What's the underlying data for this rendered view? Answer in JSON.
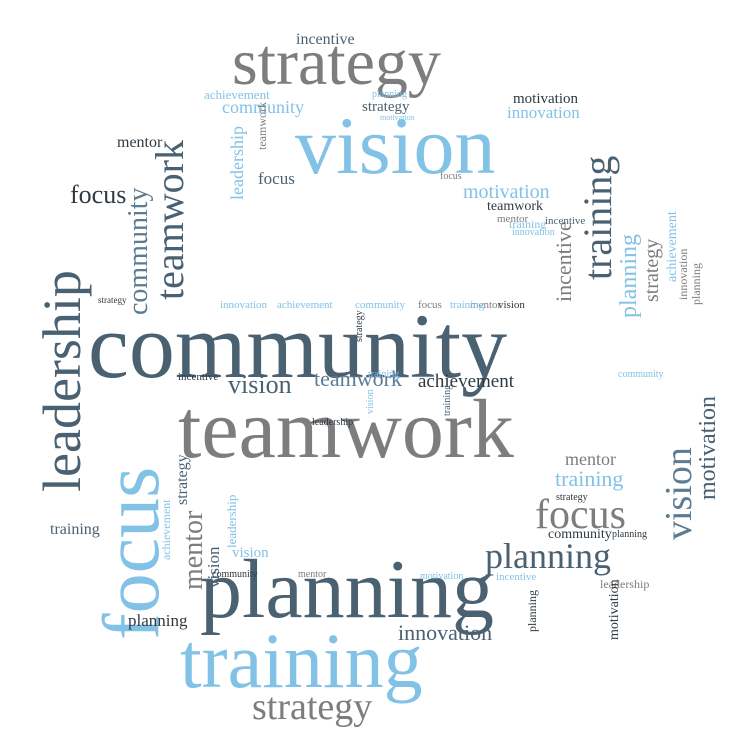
{
  "words": [
    {
      "text": "community"
    },
    {
      "text": "teamwork"
    },
    {
      "text": "planning"
    },
    {
      "text": "training"
    },
    {
      "text": "vision"
    },
    {
      "text": "strategy"
    },
    {
      "text": "focus"
    },
    {
      "text": "leadership"
    },
    {
      "text": "teamwork"
    },
    {
      "text": "community"
    },
    {
      "text": "strategy"
    },
    {
      "text": "incentive"
    },
    {
      "text": "achievement"
    },
    {
      "text": "community"
    },
    {
      "text": "strategy"
    },
    {
      "text": "motivation"
    },
    {
      "text": "innovation"
    },
    {
      "text": "planning"
    },
    {
      "text": "mentor"
    },
    {
      "text": "focus"
    },
    {
      "text": "leadership"
    },
    {
      "text": "focus"
    },
    {
      "text": "motivation"
    },
    {
      "text": "teamwork"
    },
    {
      "text": "mentor"
    },
    {
      "text": "training"
    },
    {
      "text": "training"
    },
    {
      "text": "incentive"
    },
    {
      "text": "planning"
    },
    {
      "text": "strategy"
    },
    {
      "text": "achievement"
    },
    {
      "text": "innovation"
    },
    {
      "text": "planning"
    },
    {
      "text": "vision"
    },
    {
      "text": "teamwork"
    },
    {
      "text": "achievement"
    },
    {
      "text": "vision"
    },
    {
      "text": "motivation"
    },
    {
      "text": "vision"
    },
    {
      "text": "mentor"
    },
    {
      "text": "training"
    },
    {
      "text": "strategy"
    },
    {
      "text": "focus"
    },
    {
      "text": "community"
    },
    {
      "text": "planning"
    },
    {
      "text": "planning"
    },
    {
      "text": "innovation"
    },
    {
      "text": "strategy"
    },
    {
      "text": "mentor"
    },
    {
      "text": "training"
    },
    {
      "text": "strategy"
    },
    {
      "text": "achievement"
    },
    {
      "text": "leadership"
    },
    {
      "text": "vision"
    },
    {
      "text": "leadership"
    },
    {
      "text": "community"
    },
    {
      "text": "planning"
    },
    {
      "text": "innovation"
    },
    {
      "text": "achievement"
    },
    {
      "text": "community"
    },
    {
      "text": "focus"
    },
    {
      "text": "mentor"
    },
    {
      "text": "vision"
    },
    {
      "text": "training"
    },
    {
      "text": "incentive"
    },
    {
      "text": "teamwork"
    },
    {
      "text": "incentive"
    },
    {
      "text": "focus"
    },
    {
      "text": "innovation"
    },
    {
      "text": "training"
    },
    {
      "text": "leadership"
    },
    {
      "text": "community"
    },
    {
      "text": "motivation"
    },
    {
      "text": "strategy"
    },
    {
      "text": "motivation"
    },
    {
      "text": "incentive"
    },
    {
      "text": "motivation"
    },
    {
      "text": "planning"
    },
    {
      "text": "mentor"
    },
    {
      "text": "vision"
    },
    {
      "text": "training"
    }
  ]
}
